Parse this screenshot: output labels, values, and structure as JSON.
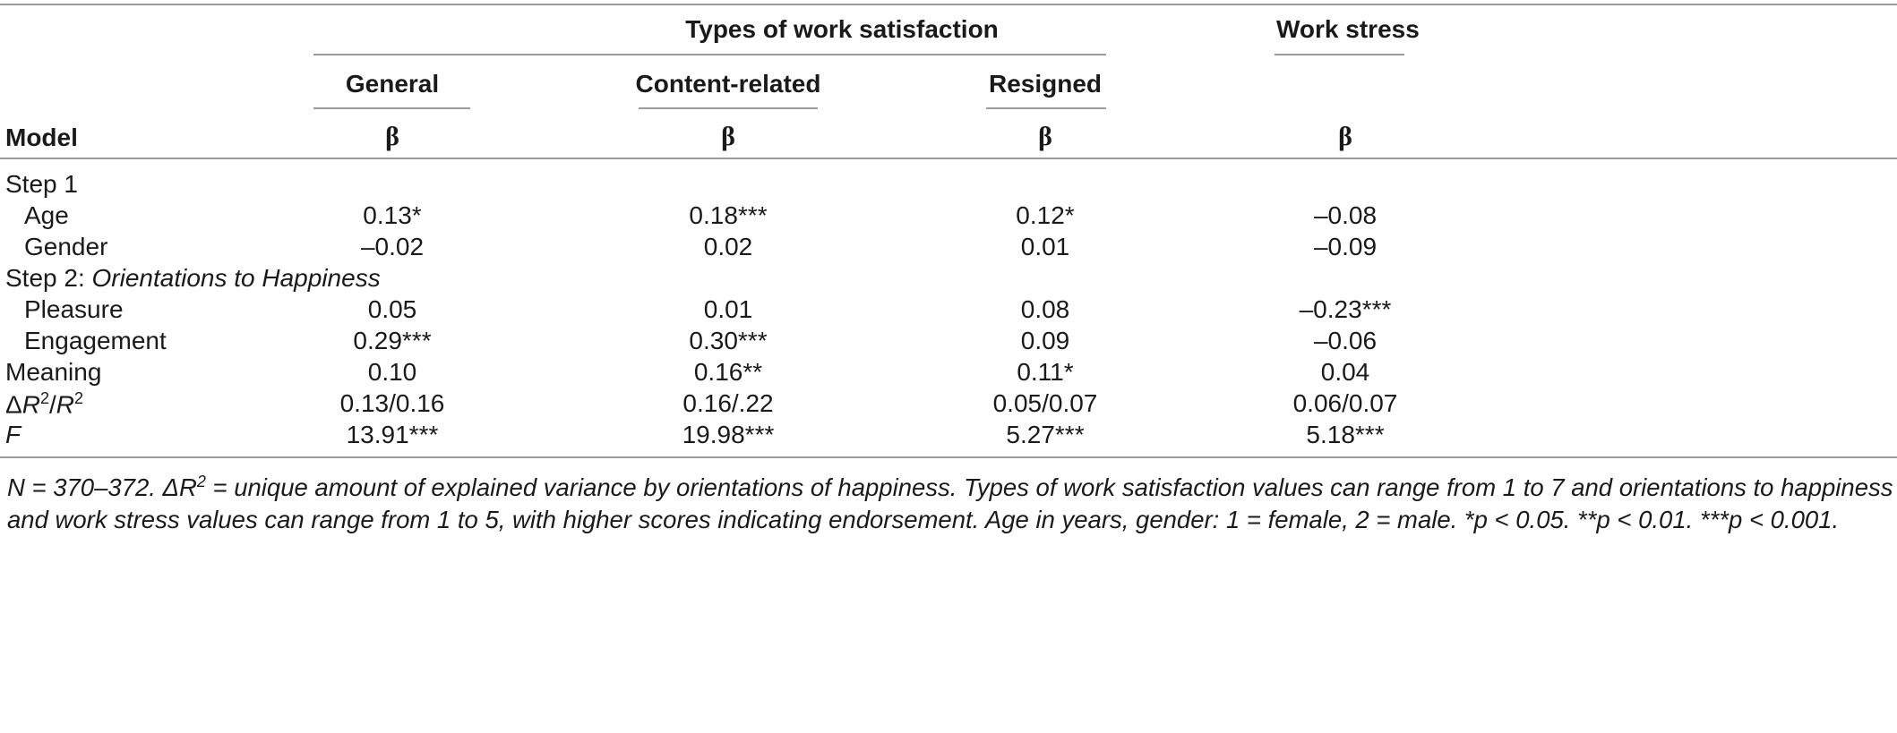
{
  "header": {
    "group_satisfaction": "Types of work satisfaction",
    "group_stress": "Work stress",
    "col_general": "General",
    "col_content": "Content-related",
    "col_resigned": "Resigned",
    "model_label": "Model",
    "beta_symbol": "β"
  },
  "rows": [
    {
      "label": "Step 1",
      "values": [
        "",
        "",
        "",
        ""
      ]
    },
    {
      "label": "Age",
      "values": [
        "0.13*",
        "0.18***",
        "0.12*",
        "–0.08"
      ]
    },
    {
      "label": "Gender",
      "values": [
        "–0.02",
        "0.02",
        "0.01",
        "–0.09"
      ]
    },
    {
      "label_prefix": "Step 2: ",
      "label_italic": "Orientations to Happiness",
      "values": [
        "",
        "",
        "",
        ""
      ]
    },
    {
      "label": "Pleasure",
      "values": [
        "0.05",
        "0.01",
        "0.08",
        "–0.23***"
      ]
    },
    {
      "label": "Engagement",
      "values": [
        "0.29***",
        "0.30***",
        "0.09",
        "–0.06"
      ]
    },
    {
      "label": "Meaning",
      "values": [
        "0.10",
        "0.16**",
        "0.11*",
        "0.04"
      ]
    },
    {
      "label_delta": "Δ",
      "label_r": "R",
      "label_sup": "2",
      "label_slash": "/",
      "label_r2": "R",
      "label_sup2": "2",
      "values": [
        "0.13/0.16",
        "0.16/.22",
        "0.05/0.07",
        "0.06/0.07"
      ]
    },
    {
      "label": "F",
      "values": [
        "13.91***",
        "19.98***",
        "5.27***",
        "5.18***"
      ]
    }
  ],
  "note": {
    "part1": "N = 370–372. ΔR",
    "sup": "2",
    "part2": " = unique amount of explained variance by orientations of happiness. Types of work satisfaction values can range from 1 to 7 and orientations to happiness and work stress values can range from 1 to 5, with higher scores indicating endorsement. Age in years, gender: 1 = female, 2 = male. *p < 0.05. **p < 0.01. ***p < 0.001."
  }
}
